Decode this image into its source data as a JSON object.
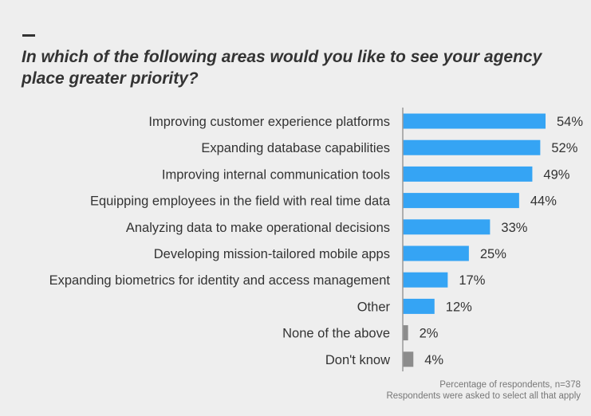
{
  "chart_data": {
    "type": "bar",
    "orientation": "horizontal",
    "title": "In which of the following areas would you like to see your agency place greater priority?",
    "categories": [
      "Improving customer experience platforms",
      "Expanding database capabilities",
      "Improving internal communication tools",
      "Equipping employees in the field with real time data",
      "Analyzing data to make operational decisions",
      "Developing mission-tailored mobile apps",
      "Expanding biometrics for identity and access management",
      "Other",
      "None of the above",
      "Don't know"
    ],
    "values": [
      54,
      52,
      49,
      44,
      33,
      25,
      17,
      12,
      2,
      4
    ],
    "labels": [
      "54%",
      "52%",
      "49%",
      "44%",
      "33%",
      "25%",
      "17%",
      "12%",
      "2%",
      "4%"
    ],
    "bar_colors": [
      "#35a4f4",
      "#35a4f4",
      "#35a4f4",
      "#35a4f4",
      "#35a4f4",
      "#35a4f4",
      "#35a4f4",
      "#35a4f4",
      "#8c8c8c",
      "#8c8c8c"
    ],
    "unit": "%",
    "xlim": [
      0,
      70
    ],
    "grid": false,
    "notes": [
      "Percentage of respondents, n=378",
      "Respondents were asked to select all that apply"
    ]
  }
}
